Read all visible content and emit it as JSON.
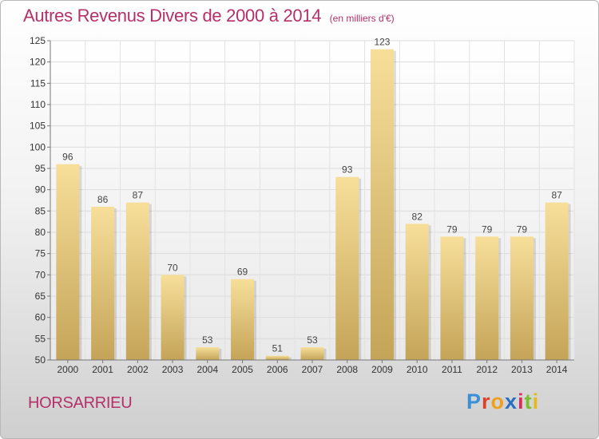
{
  "header": {
    "title": "Autres Revenus Divers de 2000 à 2014",
    "subtitle": "(en milliers d'€)"
  },
  "footer": {
    "location": "HORSARRIEU",
    "logo": "Proxiti"
  },
  "colors": {
    "title": "#b5306a",
    "bar_light": "#f7df9a",
    "bar_dark": "#c4a458"
  },
  "chart_data": {
    "type": "bar",
    "title": "Autres Revenus Divers de 2000 à 2014",
    "subtitle": "(en milliers d'€)",
    "categories": [
      "2000",
      "2001",
      "2002",
      "2003",
      "2004",
      "2005",
      "2006",
      "2007",
      "2008",
      "2009",
      "2010",
      "2011",
      "2012",
      "2013",
      "2014"
    ],
    "values": [
      96,
      86,
      87,
      70,
      53,
      69,
      51,
      53,
      93,
      123,
      82,
      79,
      79,
      79,
      87
    ],
    "ylim": [
      50,
      125
    ],
    "yticks": [
      50,
      55,
      60,
      65,
      70,
      75,
      80,
      85,
      90,
      95,
      100,
      105,
      110,
      115,
      120,
      125
    ],
    "grid": true,
    "data_labels": true
  }
}
